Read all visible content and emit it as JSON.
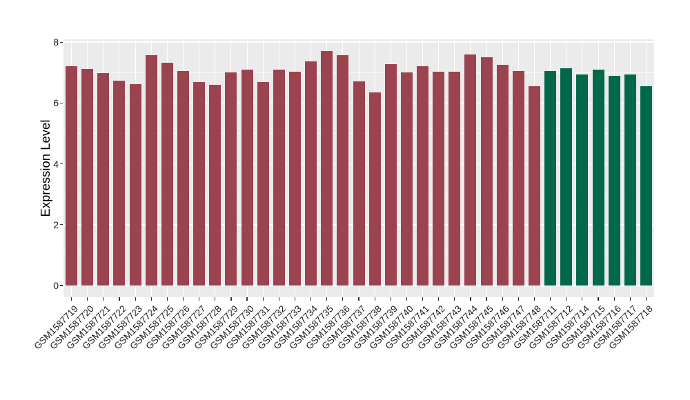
{
  "figure": {
    "background": "#FFFFFF",
    "panel_background": "#EBEBEB",
    "grid_color": "#FFFFFF",
    "tick_color": "#333333",
    "label_color": "#1A1A1A"
  },
  "chart_data": {
    "type": "bar",
    "title": "",
    "xlabel": "",
    "ylabel": "Expression Level",
    "ylim": [
      0,
      8
    ],
    "yticks_major": [
      0,
      2,
      4,
      6,
      8
    ],
    "yticks_minor": [
      1,
      3,
      5,
      7
    ],
    "grid": true,
    "legend_position": "none",
    "group_colors": {
      "left-group": "#9C4350",
      "right-group": "#01684A"
    },
    "bars": [
      {
        "label": "GSM1587719",
        "value": 7.22,
        "color": "#9C4350"
      },
      {
        "label": "GSM1587720",
        "value": 7.11,
        "color": "#9C4350"
      },
      {
        "label": "GSM1587721",
        "value": 6.99,
        "color": "#9C4350"
      },
      {
        "label": "GSM1587722",
        "value": 6.74,
        "color": "#9C4350"
      },
      {
        "label": "GSM1587723",
        "value": 6.63,
        "color": "#9C4350"
      },
      {
        "label": "GSM1587724",
        "value": 7.57,
        "color": "#9C4350"
      },
      {
        "label": "GSM1587725",
        "value": 7.32,
        "color": "#9C4350"
      },
      {
        "label": "GSM1587726",
        "value": 7.06,
        "color": "#9C4350"
      },
      {
        "label": "GSM1587727",
        "value": 6.7,
        "color": "#9C4350"
      },
      {
        "label": "GSM1587728",
        "value": 6.6,
        "color": "#9C4350"
      },
      {
        "label": "GSM1587729",
        "value": 7.0,
        "color": "#9C4350"
      },
      {
        "label": "GSM1587730",
        "value": 7.09,
        "color": "#9C4350"
      },
      {
        "label": "GSM1587731",
        "value": 6.7,
        "color": "#9C4350"
      },
      {
        "label": "GSM1587732",
        "value": 7.09,
        "color": "#9C4350"
      },
      {
        "label": "GSM1587733",
        "value": 7.02,
        "color": "#9C4350"
      },
      {
        "label": "GSM1587734",
        "value": 7.37,
        "color": "#9C4350"
      },
      {
        "label": "GSM1587735",
        "value": 7.7,
        "color": "#9C4350"
      },
      {
        "label": "GSM1587736",
        "value": 7.58,
        "color": "#9C4350"
      },
      {
        "label": "GSM1587737",
        "value": 6.72,
        "color": "#9C4350"
      },
      {
        "label": "GSM1587738",
        "value": 6.35,
        "color": "#9C4350"
      },
      {
        "label": "GSM1587739",
        "value": 7.27,
        "color": "#9C4350"
      },
      {
        "label": "GSM1587740",
        "value": 7.0,
        "color": "#9C4350"
      },
      {
        "label": "GSM1587741",
        "value": 7.2,
        "color": "#9C4350"
      },
      {
        "label": "GSM1587742",
        "value": 7.03,
        "color": "#9C4350"
      },
      {
        "label": "GSM1587743",
        "value": 7.02,
        "color": "#9C4350"
      },
      {
        "label": "GSM1587744",
        "value": 7.6,
        "color": "#9C4350"
      },
      {
        "label": "GSM1587745",
        "value": 7.5,
        "color": "#9C4350"
      },
      {
        "label": "GSM1587746",
        "value": 7.26,
        "color": "#9C4350"
      },
      {
        "label": "GSM1587747",
        "value": 7.05,
        "color": "#9C4350"
      },
      {
        "label": "GSM1587748",
        "value": 6.55,
        "color": "#9C4350"
      },
      {
        "label": "GSM1587711",
        "value": 7.05,
        "color": "#01684A"
      },
      {
        "label": "GSM1587712",
        "value": 7.15,
        "color": "#01684A"
      },
      {
        "label": "GSM1587714",
        "value": 6.93,
        "color": "#01684A"
      },
      {
        "label": "GSM1587715",
        "value": 7.1,
        "color": "#01684A"
      },
      {
        "label": "GSM1587716",
        "value": 6.89,
        "color": "#01684A"
      },
      {
        "label": "GSM1587717",
        "value": 6.94,
        "color": "#01684A"
      },
      {
        "label": "GSM1587718",
        "value": 6.56,
        "color": "#01684A"
      }
    ]
  }
}
